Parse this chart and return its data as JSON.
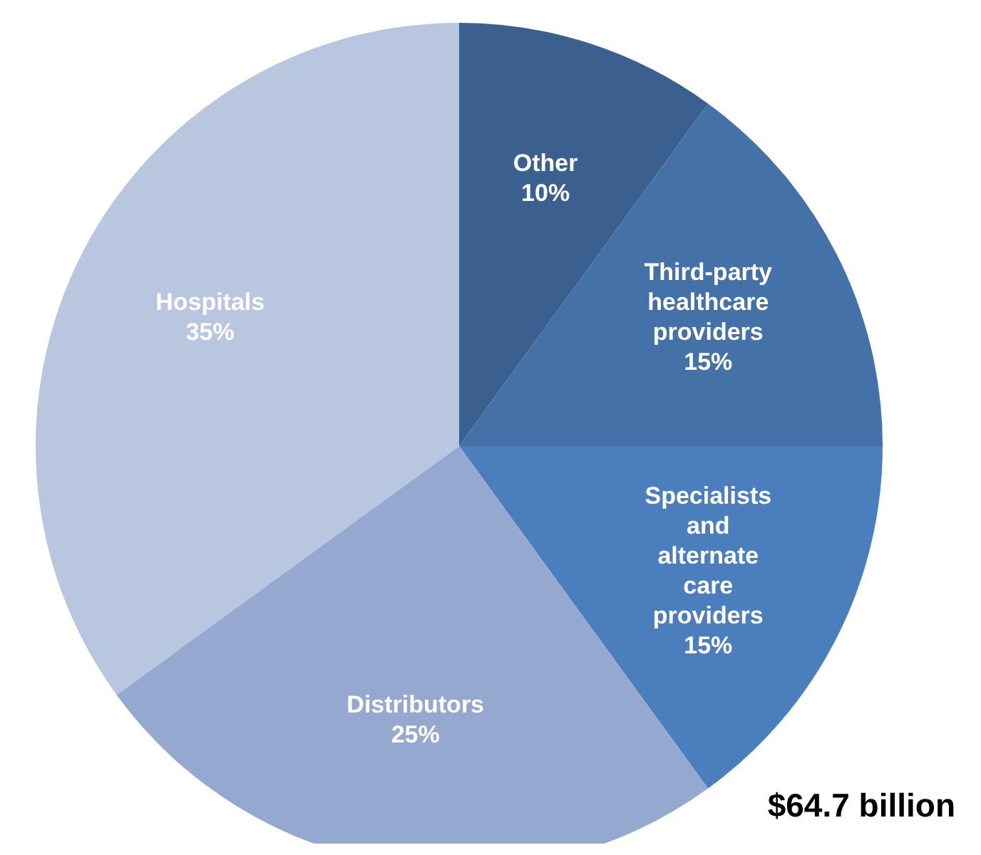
{
  "chart_data": {
    "type": "pie",
    "categories": [
      "Other",
      "Third-party healthcare providers",
      "Specialists and alternate care providers",
      "Distributors",
      "Hospitals"
    ],
    "values": [
      10,
      15,
      15,
      25,
      35
    ],
    "colors": [
      "#3b5f8f",
      "#4472a8",
      "#4a7ebc",
      "#95a9d0",
      "#b9c6e0"
    ],
    "value_labels": [
      "10%",
      "15%",
      "15%",
      "25%",
      "35%"
    ],
    "annotations": [
      "$64.7 billion"
    ]
  }
}
